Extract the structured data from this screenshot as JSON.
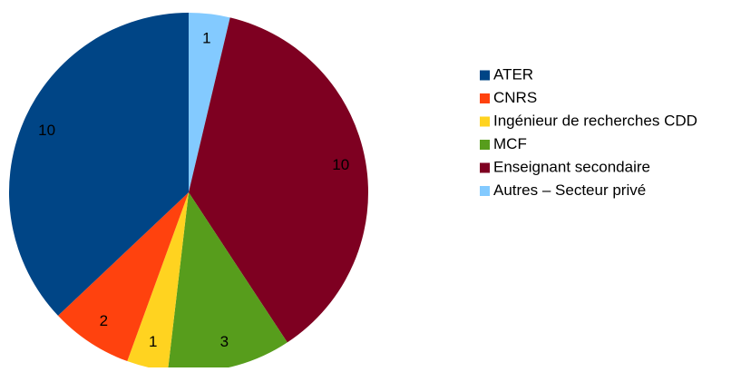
{
  "chart_data": {
    "type": "pie",
    "title": "",
    "start_angle_deg": 0,
    "direction": "clockwise",
    "legend_position": "right",
    "slices": [
      {
        "label": "Autres – Secteur privé",
        "value": 1,
        "color": "#83caff"
      },
      {
        "label": "Enseignant secondaire",
        "value": 10,
        "color": "#7e0021"
      },
      {
        "label": "MCF",
        "value": 3,
        "color": "#579d1c"
      },
      {
        "label": "Ingénieur de recherches CDD",
        "value": 1,
        "color": "#ffd320"
      },
      {
        "label": "CNRS",
        "value": 2,
        "color": "#ff420e"
      },
      {
        "label": "ATER",
        "value": 10,
        "color": "#004586"
      }
    ],
    "legend_order": [
      "ATER",
      "CNRS",
      "Ingénieur de recherches CDD",
      "MCF",
      "Enseignant secondaire",
      "Autres – Secteur privé"
    ]
  }
}
